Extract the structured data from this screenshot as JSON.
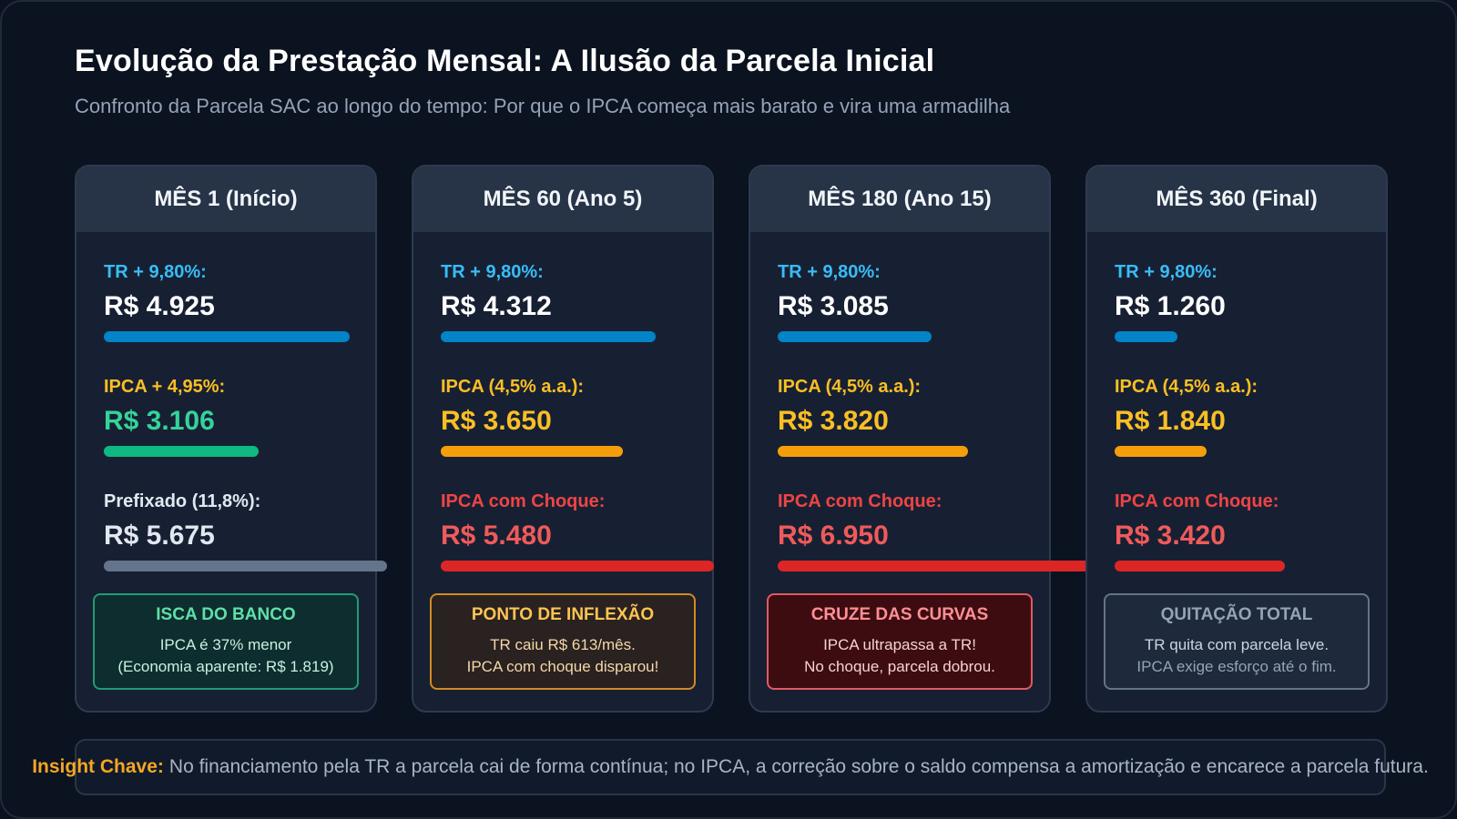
{
  "page": {
    "title": "Evolução da Prestação Mensal: A Ilusão da Parcela Inicial",
    "subtitle": "Confronto da Parcela SAC ao longo do tempo: Por que o IPCA começa mais barato e vira uma armadilha"
  },
  "colors": {
    "tr": "#0284c7",
    "tr_label": "#38bdf8",
    "ipca_initial": "#10b981",
    "ipca": "#f59e0b",
    "ipca_label": "#fbbf24",
    "choque": "#dc2626",
    "choque_label": "#ef4444",
    "choque_value": "#f05a5a",
    "prefixado": "#64748b",
    "prefixado_label": "#e2e8f0"
  },
  "chart_data": {
    "type": "bar",
    "unit": "R$",
    "categories": [
      "MÊS 1 (Início)",
      "MÊS 60 (Ano 5)",
      "MÊS 180 (Ano 15)",
      "MÊS 360 (Final)"
    ],
    "cards": [
      {
        "header": "MÊS 1 (Início)",
        "metrics": [
          {
            "label": "TR + 9,80%:",
            "display": "R$ 4.925",
            "value": 4925,
            "color_key": "tr",
            "label_color_key": "tr_label",
            "value_color_key": null
          },
          {
            "label": "IPCA + 4,95%:",
            "display": "R$ 3.106",
            "value": 3106,
            "color_key": "ipca_initial",
            "label_color_key": "ipca_label",
            "value_color_key": "ipca_initial_text"
          },
          {
            "label": "Prefixado (11,8%):",
            "display": "R$ 5.675",
            "value": 5675,
            "color_key": "prefixado",
            "label_color_key": "prefixado_label",
            "value_color_key": "prefixado_label"
          }
        ],
        "badge": {
          "style": "green",
          "title": "ISCA DO BANCO",
          "line1": "IPCA é 37% menor",
          "line2": "(Economia aparente: R$ 1.819)"
        }
      },
      {
        "header": "MÊS 60 (Ano 5)",
        "metrics": [
          {
            "label": "TR + 9,80%:",
            "display": "R$ 4.312",
            "value": 4312,
            "color_key": "tr",
            "label_color_key": "tr_label",
            "value_color_key": null
          },
          {
            "label": "IPCA (4,5% a.a.):",
            "display": "R$ 3.650",
            "value": 3650,
            "color_key": "ipca",
            "label_color_key": "ipca_label",
            "value_color_key": "ipca_label"
          },
          {
            "label": "IPCA com Choque:",
            "display": "R$ 5.480",
            "value": 5480,
            "color_key": "choque",
            "label_color_key": "choque_label",
            "value_color_key": "choque_value"
          }
        ],
        "badge": {
          "style": "amber",
          "title": "PONTO DE INFLEXÃO",
          "line1": "TR caiu R$ 613/mês.",
          "line2": "IPCA com choque disparou!"
        }
      },
      {
        "header": "MÊS 180 (Ano 15)",
        "metrics": [
          {
            "label": "TR + 9,80%:",
            "display": "R$ 3.085",
            "value": 3085,
            "color_key": "tr",
            "label_color_key": "tr_label",
            "value_color_key": null
          },
          {
            "label": "IPCA (4,5% a.a.):",
            "display": "R$ 3.820",
            "value": 3820,
            "color_key": "ipca",
            "label_color_key": "ipca_label",
            "value_color_key": "ipca_label"
          },
          {
            "label": "IPCA com Choque:",
            "display": "R$ 6.950",
            "value": 6950,
            "color_key": "choque",
            "label_color_key": "choque_label",
            "value_color_key": "choque_value"
          }
        ],
        "badge": {
          "style": "red",
          "title": "CRUZE DAS CURVAS",
          "line1": "IPCA ultrapassa a TR!",
          "line2": "No choque, parcela dobrou."
        }
      },
      {
        "header": "MÊS 360 (Final)",
        "metrics": [
          {
            "label": "TR + 9,80%:",
            "display": "R$ 1.260",
            "value": 1260,
            "color_key": "tr",
            "label_color_key": "tr_label",
            "value_color_key": null
          },
          {
            "label": "IPCA (4,5% a.a.):",
            "display": "R$ 1.840",
            "value": 1840,
            "color_key": "ipca",
            "label_color_key": "ipca_label",
            "value_color_key": "ipca_label"
          },
          {
            "label": "IPCA com Choque:",
            "display": "R$ 3.420",
            "value": 3420,
            "color_key": "choque",
            "label_color_key": "choque_label",
            "value_color_key": "choque_value"
          }
        ],
        "badge": {
          "style": "slate",
          "title": "QUITAÇÃO TOTAL",
          "line1": "TR quita com parcela leve.",
          "line2": "IPCA exige esforço até o fim."
        }
      }
    ]
  },
  "insight": {
    "key": "Insight Chave:",
    "text": "No financiamento pela TR a parcela cai de forma contínua; no IPCA, a correção sobre o saldo compensa a amortização e encarece a parcela futura."
  }
}
